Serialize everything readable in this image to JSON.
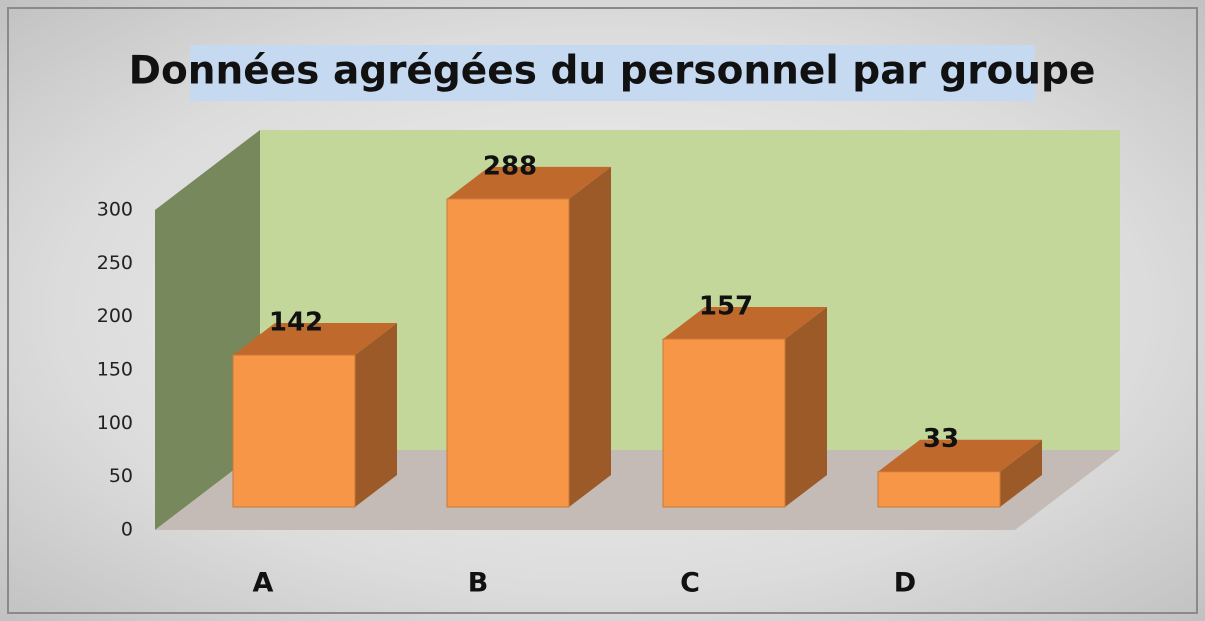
{
  "chart_data": {
    "type": "bar3d",
    "title": "Données agrégées du personnel par groupe",
    "categories": [
      "A",
      "B",
      "C",
      "D"
    ],
    "values": [
      142,
      288,
      157,
      33
    ],
    "color": "#f79646",
    "ylim": [
      0,
      300
    ],
    "yticks": [
      0,
      50,
      100,
      150,
      200,
      250,
      300
    ],
    "grid": false
  }
}
